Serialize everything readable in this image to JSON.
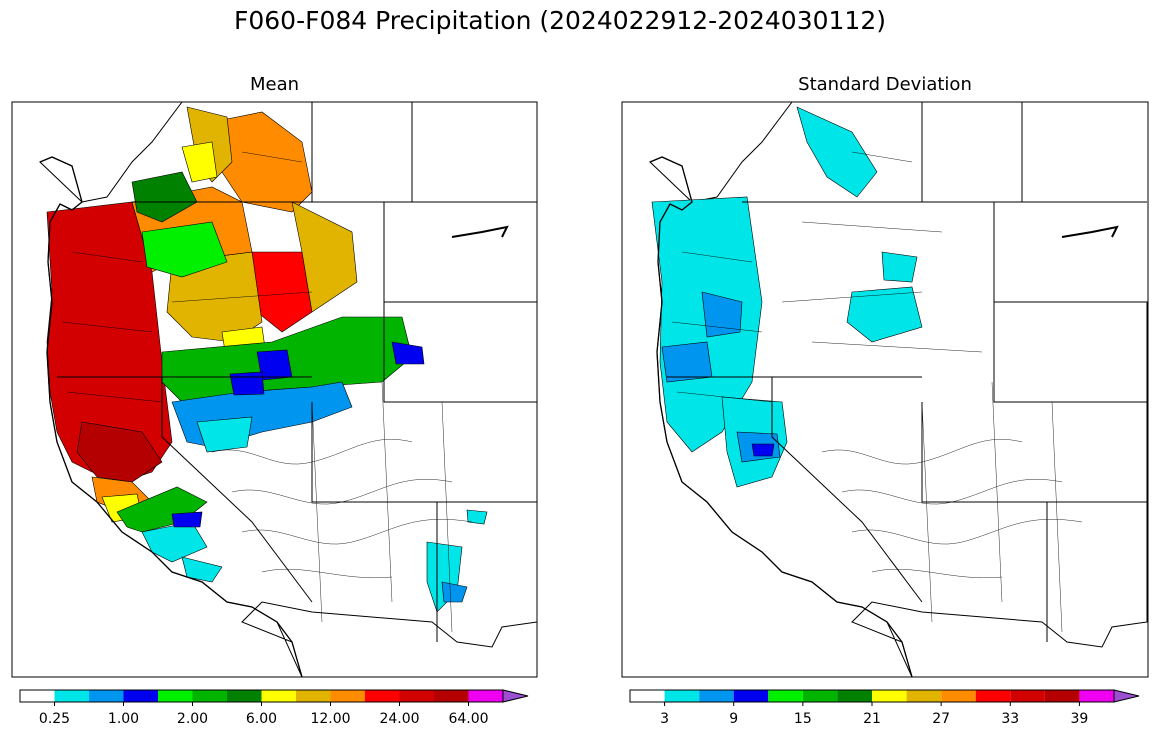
{
  "figure": {
    "title": "F060-F084 Precipitation (2024022912-2024030112)"
  },
  "panels": [
    {
      "subtitle": "Mean",
      "colorbar": {
        "colors": [
          "#ffffff",
          "#00e5e8",
          "#0096f0",
          "#0000f0",
          "#00f000",
          "#00b400",
          "#008200",
          "#ffff00",
          "#e0b400",
          "#ff8c00",
          "#ff0000",
          "#d20000",
          "#b40000",
          "#f000f0",
          "#9b50d2"
        ],
        "extend": "max",
        "tick_labels": [
          "0.25",
          "1.00",
          "2.00",
          "6.00",
          "12.00",
          "24.00",
          "64.00"
        ]
      }
    },
    {
      "subtitle": "Standard Deviation",
      "colorbar": {
        "colors": [
          "#ffffff",
          "#00e5e8",
          "#0096f0",
          "#0000f0",
          "#00f000",
          "#00b400",
          "#008200",
          "#ffff00",
          "#e0b400",
          "#ff8c00",
          "#ff0000",
          "#d20000",
          "#b40000",
          "#f000f0",
          "#9b50d2"
        ],
        "extend": "max",
        "tick_labels": [
          "3",
          "9",
          "15",
          "21",
          "27",
          "33",
          "39"
        ]
      }
    }
  ]
}
